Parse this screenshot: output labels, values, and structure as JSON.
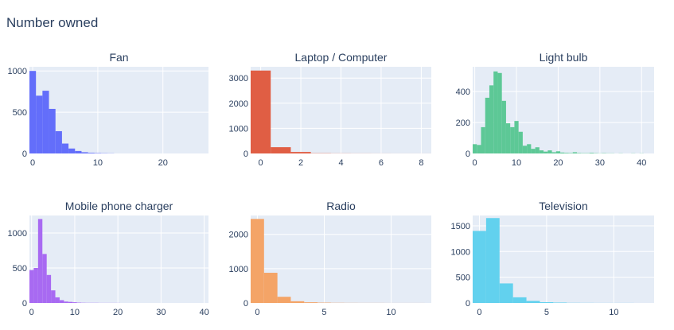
{
  "title": "Number owned",
  "colors": {
    "plot_bg": "#e5ecf6",
    "grid": "#ffffff",
    "text": "#2a3f5f"
  },
  "chart_data": [
    {
      "type": "bar",
      "title": "Fan",
      "color": "#636efa",
      "bin_width": 1,
      "bin_start": -0.5,
      "values": [
        1000,
        700,
        760,
        540,
        270,
        120,
        60,
        30,
        15,
        8,
        5,
        3,
        2
      ],
      "xlim": [
        -0.5,
        27
      ],
      "ylim": [
        0,
        1050
      ],
      "xticks": [
        0,
        10,
        20
      ],
      "xtick_labels": [
        "0",
        "10",
        "20"
      ],
      "yticks": [
        0,
        500,
        1000
      ],
      "ytick_labels": [
        "0",
        "500",
        "1000"
      ]
    },
    {
      "type": "bar",
      "title": "Laptop / Computer",
      "color": "#e05e44",
      "bin_width": 1,
      "bin_start": -0.5,
      "values": [
        3300,
        250,
        60,
        10,
        5,
        3,
        2,
        1,
        1
      ],
      "xlim": [
        -0.5,
        8.5
      ],
      "ylim": [
        0,
        3450
      ],
      "xticks": [
        0,
        2,
        4,
        6,
        8
      ],
      "xtick_labels": [
        "0",
        "2",
        "4",
        "6",
        "8"
      ],
      "yticks": [
        0,
        1000,
        2000,
        3000
      ],
      "ytick_labels": [
        "0",
        "1000",
        "2000",
        "3000"
      ]
    },
    {
      "type": "bar",
      "title": "Light bulb",
      "color": "#5dc896",
      "bin_width": 1,
      "bin_start": -0.5,
      "values": [
        60,
        55,
        170,
        360,
        440,
        530,
        520,
        340,
        195,
        170,
        210,
        140,
        50,
        60,
        30,
        40,
        20,
        12,
        20,
        8,
        14,
        6,
        4,
        3,
        8,
        3,
        2,
        2,
        4,
        2,
        1,
        2,
        1,
        1,
        0,
        1,
        0,
        0,
        1,
        0,
        1
      ],
      "xlim": [
        -0.5,
        43
      ],
      "ylim": [
        0,
        560
      ],
      "xticks": [
        0,
        10,
        20,
        30,
        40
      ],
      "xtick_labels": [
        "0",
        "10",
        "20",
        "30",
        "40"
      ],
      "yticks": [
        0,
        200,
        400
      ],
      "ytick_labels": [
        "0",
        "200",
        "400"
      ]
    },
    {
      "type": "bar",
      "title": "Mobile phone charger",
      "color": "#a86af2",
      "bin_width": 1,
      "bin_start": -0.5,
      "values": [
        470,
        500,
        1200,
        700,
        400,
        180,
        80,
        40,
        20,
        15,
        10,
        5,
        3,
        2,
        2,
        2,
        1,
        1,
        1,
        1,
        1
      ],
      "xlim": [
        -0.5,
        41
      ],
      "ylim": [
        0,
        1250
      ],
      "xticks": [
        0,
        10,
        20,
        30,
        40
      ],
      "xtick_labels": [
        "0",
        "10",
        "20",
        "30",
        "40"
      ],
      "yticks": [
        0,
        500,
        1000
      ],
      "ytick_labels": [
        "0",
        "500",
        "1000"
      ]
    },
    {
      "type": "bar",
      "title": "Radio",
      "color": "#f4a467",
      "bin_width": 1,
      "bin_start": -0.5,
      "values": [
        2450,
        880,
        180,
        50,
        20,
        10,
        5,
        3,
        2,
        2,
        1,
        1,
        1
      ],
      "xlim": [
        -0.5,
        13
      ],
      "ylim": [
        0,
        2550
      ],
      "xticks": [
        0,
        5,
        10
      ],
      "xtick_labels": [
        "0",
        "5",
        "10"
      ],
      "yticks": [
        0,
        1000,
        2000
      ],
      "ytick_labels": [
        "0",
        "1000",
        "2000"
      ]
    },
    {
      "type": "bar",
      "title": "Television",
      "color": "#62d1ee",
      "bin_width": 1,
      "bin_start": -0.5,
      "values": [
        1400,
        1650,
        380,
        110,
        40,
        15,
        8,
        3,
        2,
        1,
        1,
        1
      ],
      "xlim": [
        -0.5,
        13
      ],
      "ylim": [
        0,
        1700
      ],
      "xticks": [
        0,
        5,
        10
      ],
      "xtick_labels": [
        "0",
        "5",
        "10"
      ],
      "yticks": [
        0,
        500,
        1000,
        1500
      ],
      "ytick_labels": [
        "0",
        "500",
        "1000",
        "1500"
      ]
    }
  ]
}
